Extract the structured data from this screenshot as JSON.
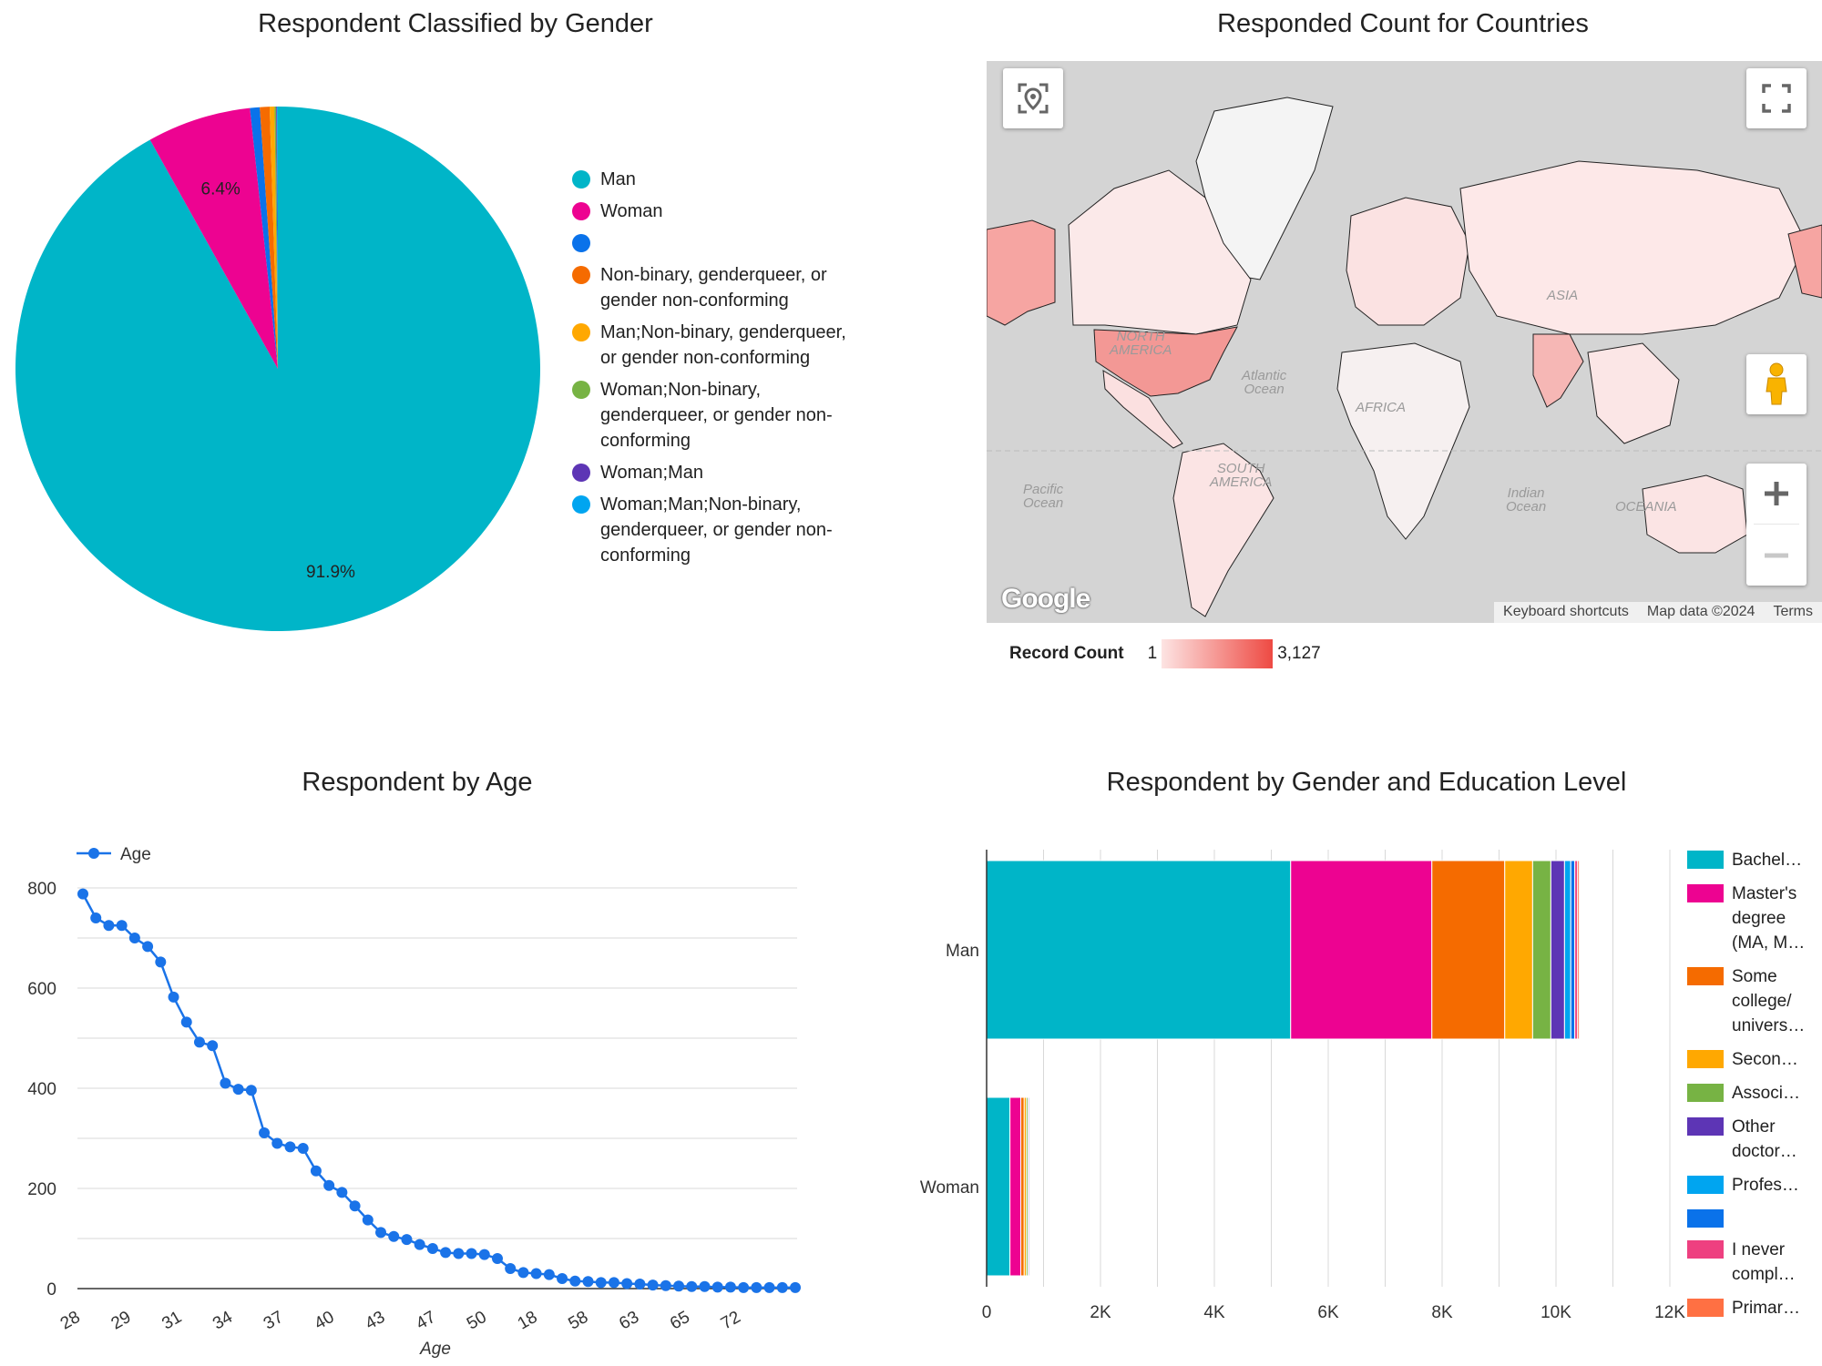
{
  "pie": {
    "title": "Respondent Classified by Gender",
    "chart_data": {
      "type": "pie",
      "title": "Respondent Classified by Gender",
      "slices": [
        {
          "label": "Man",
          "value": 91.9,
          "color": "#00b5c8",
          "shown_label": "91.9%"
        },
        {
          "label": "Woman",
          "value": 6.4,
          "color": "#ed0391",
          "shown_label": "6.4%"
        },
        {
          "label": "",
          "value": 0.6,
          "color": "#0a72ea",
          "shown_label": ""
        },
        {
          "label": "Non-binary, genderqueer, or gender non-conforming",
          "value": 0.6,
          "color": "#f56b00",
          "shown_label": ""
        },
        {
          "label": "Man;Non-binary, genderqueer, or gender non-conforming",
          "value": 0.3,
          "color": "#ffa801",
          "shown_label": ""
        },
        {
          "label": "Woman;Non-binary, genderqueer, or gender non-conforming",
          "value": 0.1,
          "color": "#77b344",
          "shown_label": ""
        },
        {
          "label": "Woman;Man",
          "value": 0.05,
          "color": "#5d35b5",
          "shown_label": ""
        },
        {
          "label": "Woman;Man;Non-binary, genderqueer, or gender non-conforming",
          "value": 0.05,
          "color": "#00a5f0",
          "shown_label": ""
        }
      ],
      "legend_position": "right"
    }
  },
  "map": {
    "title": "Responded Count for Countries",
    "attribution": [
      "Keyboard shortcuts",
      "Map data ©2024",
      "Terms"
    ],
    "logo": "Google",
    "regions": {
      "asia": "ASIA",
      "north_america": "NORTH\nAMERICA",
      "atlantic": "Atlantic\nOcean",
      "africa": "AFRICA",
      "south_america": "SOUTH\nAMERICA",
      "pacific": "Pacific\nOcean",
      "indian": "Indian\nOcean",
      "oceania": "OCEANIA"
    },
    "legend": {
      "title": "Record Count",
      "min": "1",
      "max": "3,127",
      "color_min": "#fde4e3",
      "color_max": "#ee4a43"
    },
    "icons": [
      "locate-icon",
      "fullscreen-icon",
      "pegman-icon",
      "zoom-in-icon",
      "zoom-out-icon"
    ]
  },
  "age": {
    "title": "Respondent by Age",
    "chart_data": {
      "type": "line",
      "title": "Respondent by Age",
      "series": [
        {
          "name": "Age",
          "color": "#1a73e8",
          "values": [
            788,
            740,
            725,
            725,
            700,
            683,
            652,
            582,
            532,
            492,
            485,
            410,
            398,
            396,
            311,
            290,
            283,
            280,
            235,
            206,
            192,
            165,
            137,
            112,
            104,
            98,
            88,
            80,
            72,
            70,
            70,
            68,
            60,
            40,
            32,
            30,
            28,
            20,
            15,
            14,
            12,
            12,
            10,
            9,
            7,
            6,
            5,
            4,
            4,
            3,
            3,
            2,
            2,
            2,
            2,
            2
          ]
        }
      ],
      "tick_labels": [
        "28",
        "29",
        "31",
        "34",
        "37",
        "40",
        "43",
        "47",
        "50",
        "18",
        "58",
        "63",
        "65",
        "72"
      ],
      "xlabel": "Age",
      "ylabel": "",
      "y_ticks": [
        "0",
        "200",
        "400",
        "600",
        "800"
      ],
      "ylim": [
        0,
        800
      ],
      "legend_position": "top-left"
    }
  },
  "edu": {
    "title": "Respondent by Gender and Education Level",
    "chart_data": {
      "type": "bar",
      "orientation": "horizontal",
      "stacked": true,
      "title": "Respondent by Gender and Education Level",
      "categories": [
        "Man",
        "Woman"
      ],
      "series": [
        {
          "name": "Bachel…",
          "color": "#00b5c8",
          "values": [
            5340,
            410
          ]
        },
        {
          "name": "Master's degree (MA, M…",
          "color": "#ed0391",
          "values": [
            2480,
            190
          ]
        },
        {
          "name": "Some college/ univers…",
          "color": "#f56b00",
          "values": [
            1280,
            60
          ]
        },
        {
          "name": "Secon…",
          "color": "#ffa801",
          "values": [
            490,
            40
          ]
        },
        {
          "name": "Associ…",
          "color": "#77b344",
          "values": [
            320,
            30
          ]
        },
        {
          "name": "Other doctor…",
          "color": "#5d35b5",
          "values": [
            240,
            20
          ]
        },
        {
          "name": "Profes…",
          "color": "#00a5f0",
          "values": [
            110,
            10
          ]
        },
        {
          "name": "",
          "color": "#0a72ea",
          "values": [
            70,
            5
          ]
        },
        {
          "name": "I never compl…",
          "color": "#ee4080",
          "values": [
            50,
            5
          ]
        },
        {
          "name": "Primar…",
          "color": "#ff7043",
          "values": [
            30,
            5
          ]
        }
      ],
      "x_ticks": [
        "0",
        "2K",
        "4K",
        "6K",
        "8K",
        "10K",
        "12K"
      ],
      "xlim": [
        0,
        12000
      ],
      "grid": true,
      "legend_position": "right"
    }
  }
}
